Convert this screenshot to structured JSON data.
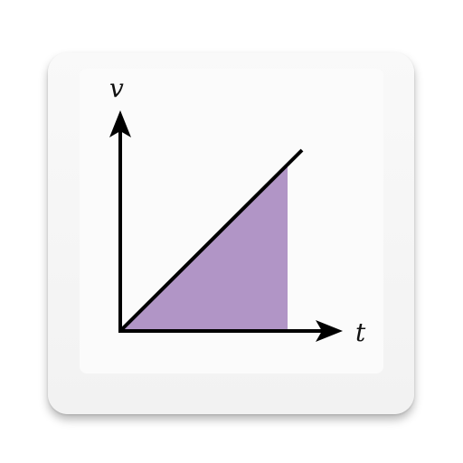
{
  "graph": {
    "y_axis_label": "v",
    "x_axis_label": "t"
  },
  "colors": {
    "area_fill": "#b195c6",
    "line": "#000000",
    "tile": "#f6f6f6"
  }
}
